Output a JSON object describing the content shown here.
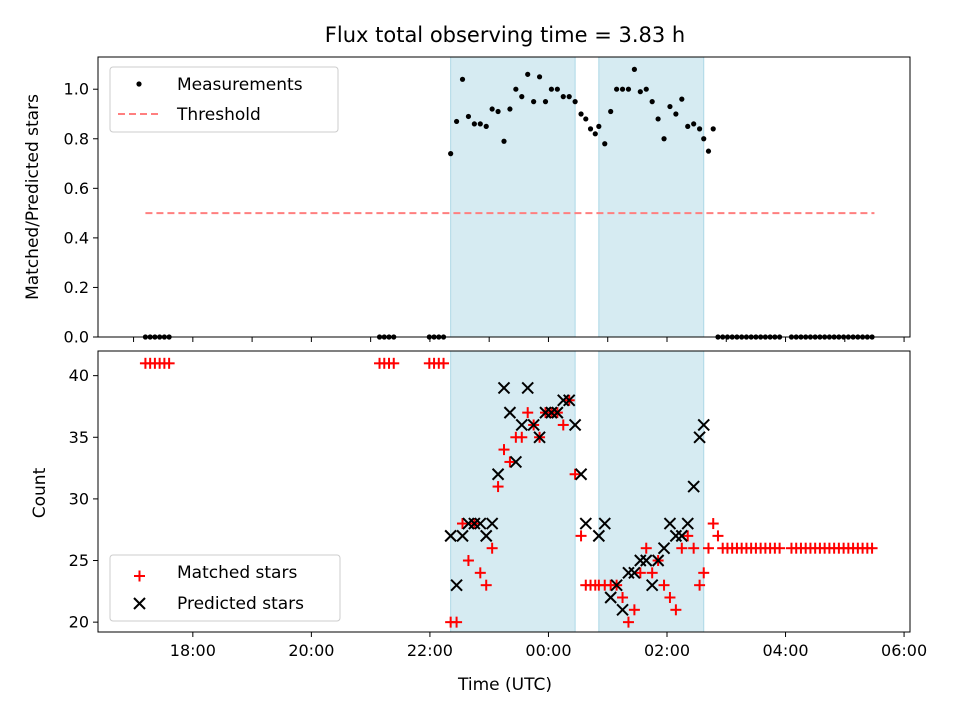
{
  "figure": {
    "title": "Flux total observing time = 3.83 h",
    "xlabel": "Time (UTC)"
  },
  "chart_data": [
    {
      "type": "scatter",
      "panel": "top",
      "ylabel": "Matched/Predicted stars",
      "xlabel": "Time (UTC)",
      "xlim": [
        16.4,
        30.1
      ],
      "ylim": [
        0.0,
        1.13
      ],
      "yticks": [
        0.0,
        0.2,
        0.4,
        0.6,
        0.8,
        1.0
      ],
      "ytick_labels": [
        "0.0",
        "0.2",
        "0.4",
        "0.6",
        "0.8",
        "1.0"
      ],
      "xticks": [
        17,
        18,
        19,
        20,
        21,
        22,
        23,
        24,
        25,
        26,
        27,
        28,
        29,
        30
      ],
      "shaded_intervals": [
        [
          22.35,
          24.45
        ],
        [
          24.85,
          26.62
        ]
      ],
      "legend": {
        "position": "upper-left",
        "entries": [
          "Measurements",
          "Threshold"
        ]
      },
      "threshold": {
        "name": "Threshold",
        "value": 0.5,
        "x_start": 17.2,
        "x_end": 29.5,
        "color": "#ff7f7f"
      },
      "series": [
        {
          "name": "Measurements",
          "color": "#000000",
          "marker": "dot",
          "x": [
            17.2,
            17.28,
            17.36,
            17.44,
            17.52,
            17.6,
            21.15,
            21.23,
            21.31,
            21.39,
            21.99,
            22.07,
            22.15,
            22.23,
            22.35,
            22.45,
            22.55,
            22.65,
            22.75,
            22.85,
            22.95,
            23.05,
            23.15,
            23.25,
            23.35,
            23.45,
            23.55,
            23.65,
            23.75,
            23.85,
            23.95,
            24.05,
            24.15,
            24.25,
            24.35,
            24.45,
            24.55,
            24.63,
            24.71,
            24.79,
            24.85,
            24.95,
            25.05,
            25.15,
            25.25,
            25.35,
            25.45,
            25.55,
            25.65,
            25.75,
            25.85,
            25.95,
            26.05,
            26.15,
            26.25,
            26.35,
            26.45,
            26.55,
            26.62,
            26.7,
            26.78,
            26.86,
            26.94,
            27.02,
            27.1,
            27.18,
            27.26,
            27.34,
            27.42,
            27.5,
            27.58,
            27.66,
            27.74,
            27.82,
            27.9,
            28.1,
            28.18,
            28.26,
            28.34,
            28.42,
            28.5,
            28.58,
            28.66,
            28.74,
            28.82,
            28.9,
            28.98,
            29.06,
            29.14,
            29.22,
            29.3,
            29.38,
            29.46
          ],
          "y": [
            0.0,
            0.0,
            0.0,
            0.0,
            0.0,
            0.0,
            0.0,
            0.0,
            0.0,
            0.0,
            0.0,
            0.0,
            0.0,
            0.0,
            0.74,
            0.87,
            1.04,
            0.89,
            0.86,
            0.86,
            0.85,
            0.92,
            0.91,
            0.79,
            0.92,
            1.0,
            0.97,
            1.06,
            0.95,
            1.05,
            0.95,
            1.0,
            1.0,
            0.97,
            0.97,
            0.95,
            0.9,
            0.88,
            0.84,
            0.82,
            0.85,
            0.78,
            0.91,
            1.0,
            1.0,
            1.0,
            1.08,
            0.99,
            1.0,
            0.95,
            0.88,
            0.8,
            0.93,
            0.9,
            0.96,
            0.85,
            0.86,
            0.84,
            0.8,
            0.75,
            0.84,
            0.0,
            0.0,
            0.0,
            0.0,
            0.0,
            0.0,
            0.0,
            0.0,
            0.0,
            0.0,
            0.0,
            0.0,
            0.0,
            0.0,
            0.0,
            0.0,
            0.0,
            0.0,
            0.0,
            0.0,
            0.0,
            0.0,
            0.0,
            0.0,
            0.0,
            0.0,
            0.0,
            0.0,
            0.0,
            0.0,
            0.0,
            0.0
          ]
        }
      ]
    },
    {
      "type": "scatter",
      "panel": "bottom",
      "ylabel": "Count",
      "xlabel": "Time (UTC)",
      "xlim": [
        16.4,
        30.1
      ],
      "ylim": [
        19.2,
        42.0
      ],
      "yticks": [
        20,
        25,
        30,
        35,
        40
      ],
      "ytick_labels": [
        "20",
        "25",
        "30",
        "35",
        "40"
      ],
      "xticks": [
        18,
        20,
        22,
        24,
        26,
        28,
        30
      ],
      "xtick_labels": [
        "18:00",
        "20:00",
        "22:00",
        "00:00",
        "02:00",
        "04:00",
        "06:00"
      ],
      "shaded_intervals": [
        [
          22.35,
          24.45
        ],
        [
          24.85,
          26.62
        ]
      ],
      "legend": {
        "position": "lower-left",
        "entries": [
          "Matched stars",
          "Predicted stars"
        ]
      },
      "series": [
        {
          "name": "Matched stars",
          "color": "#ff0000",
          "marker": "plus",
          "x": [
            17.2,
            17.28,
            17.36,
            17.44,
            17.52,
            17.6,
            21.15,
            21.23,
            21.31,
            21.39,
            21.99,
            22.07,
            22.15,
            22.23,
            22.35,
            22.45,
            22.55,
            22.65,
            22.75,
            22.85,
            22.95,
            23.05,
            23.15,
            23.25,
            23.35,
            23.45,
            23.55,
            23.65,
            23.75,
            23.85,
            23.95,
            24.05,
            24.15,
            24.25,
            24.35,
            24.45,
            24.55,
            24.63,
            24.71,
            24.79,
            24.85,
            24.95,
            25.05,
            25.15,
            25.25,
            25.35,
            25.45,
            25.55,
            25.65,
            25.75,
            25.85,
            25.95,
            26.05,
            26.15,
            26.25,
            26.35,
            26.45,
            26.55,
            26.62,
            26.7,
            26.78,
            26.86,
            26.94,
            27.02,
            27.1,
            27.18,
            27.26,
            27.34,
            27.42,
            27.5,
            27.58,
            27.66,
            27.74,
            27.82,
            27.9,
            28.1,
            28.18,
            28.26,
            28.34,
            28.42,
            28.5,
            28.58,
            28.66,
            28.74,
            28.82,
            28.9,
            28.98,
            29.06,
            29.14,
            29.22,
            29.3,
            29.38,
            29.46
          ],
          "y": [
            41,
            41,
            41,
            41,
            41,
            41,
            41,
            41,
            41,
            41,
            41,
            41,
            41,
            41,
            20,
            20,
            28,
            25,
            28,
            24,
            23,
            26,
            31,
            34,
            33,
            35,
            35,
            37,
            36,
            35,
            37,
            37,
            37,
            36,
            38,
            32,
            27,
            23,
            23,
            23,
            23,
            23,
            23,
            23,
            22,
            20,
            21,
            24,
            26,
            24,
            25,
            23,
            22,
            21,
            26,
            27,
            26,
            23,
            24,
            26,
            28,
            27,
            26,
            26,
            26,
            26,
            26,
            26,
            26,
            26,
            26,
            26,
            26,
            26,
            26,
            26,
            26,
            26,
            26,
            26,
            26,
            26,
            26,
            26,
            26,
            26,
            26,
            26,
            26,
            26,
            26,
            26,
            26
          ]
        },
        {
          "name": "Predicted stars",
          "color": "#000000",
          "marker": "x",
          "x": [
            22.35,
            22.45,
            22.55,
            22.65,
            22.75,
            22.85,
            22.95,
            23.05,
            23.15,
            23.25,
            23.35,
            23.45,
            23.55,
            23.65,
            23.75,
            23.85,
            23.95,
            24.05,
            24.15,
            24.25,
            24.35,
            24.45,
            24.55,
            24.63,
            24.85,
            24.95,
            25.05,
            25.15,
            25.25,
            25.35,
            25.45,
            25.55,
            25.65,
            25.75,
            25.85,
            25.95,
            26.05,
            26.15,
            26.25,
            26.35,
            26.45,
            26.55,
            26.62
          ],
          "y": [
            27,
            23,
            27,
            28,
            28,
            28,
            27,
            28,
            32,
            39,
            37,
            33,
            36,
            39,
            36,
            35,
            37,
            37,
            37,
            38,
            38,
            36,
            32,
            28,
            27,
            28,
            22,
            23,
            21,
            24,
            24,
            25,
            25,
            23,
            25,
            26,
            28,
            27,
            27,
            28,
            31,
            35,
            36
          ]
        }
      ]
    }
  ]
}
